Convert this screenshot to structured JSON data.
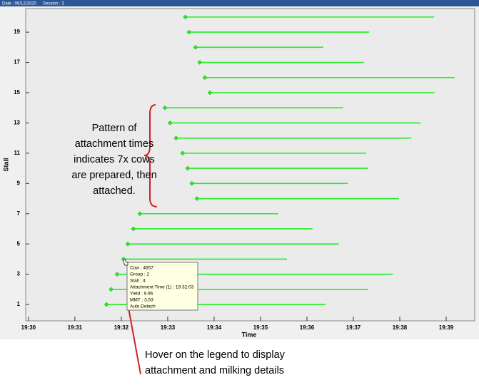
{
  "header": {
    "date": "Date : 06/12/2020",
    "session": "Session : 3"
  },
  "chart_data": {
    "type": "range",
    "xlabel": "Time",
    "ylabel": "Stall",
    "color": "#22ee22",
    "stalls": [
      1,
      2,
      3,
      4,
      5,
      6,
      7,
      8,
      9,
      10,
      11,
      12,
      13,
      14,
      15,
      16,
      17,
      18,
      19,
      20
    ],
    "starts": [
      1171.68,
      1171.78,
      1171.91,
      1172.05,
      1172.14,
      1172.26,
      1172.4,
      1173.63,
      1173.52,
      1173.43,
      1173.32,
      1173.18,
      1173.05,
      1172.94,
      1173.91,
      1173.8,
      1173.69,
      1173.6,
      1173.46,
      1173.38
    ],
    "ends": [
      1176.4,
      1177.31,
      1177.85,
      1175.57,
      1176.69,
      1176.12,
      1175.38,
      1177.98,
      1176.88,
      1177.32,
      1177.28,
      1178.25,
      1178.45,
      1176.78,
      1178.75,
      1179.18,
      1177.23,
      1176.35,
      1177.34,
      1178.74
    ],
    "xlim": [
      1169.94,
      1179.615
    ],
    "xticks": [
      {
        "value": 1170,
        "label": "19:30"
      },
      {
        "value": 1171,
        "label": "19:31"
      },
      {
        "value": 1172,
        "label": "19:32"
      },
      {
        "value": 1173,
        "label": "19:33"
      },
      {
        "value": 1174,
        "label": "19:34"
      },
      {
        "value": 1175,
        "label": "19:35"
      },
      {
        "value": 1176,
        "label": "19:36"
      },
      {
        "value": 1177,
        "label": "19:37"
      },
      {
        "value": 1178,
        "label": "19:38"
      },
      {
        "value": 1179,
        "label": "19:39"
      }
    ],
    "ylim": [
      -0.08,
      20.56
    ],
    "yticks": [
      1,
      3,
      5,
      7,
      9,
      11,
      13,
      15,
      17,
      19
    ],
    "grid": false
  },
  "tooltip": [
    "Cow : 4857",
    "Group : 2",
    "Stall : 4",
    "Attachment Time (1) : 19:32:03",
    "Yield : 9.96",
    "MMT : 3.53",
    "Auto Detach"
  ],
  "annotations": {
    "pattern": [
      "Pattern of",
      "attachment times",
      "indicates 7x cows",
      "are prepared, then",
      "attached."
    ],
    "hover": [
      "Hover on the legend to display",
      "attachment and milking details"
    ]
  }
}
